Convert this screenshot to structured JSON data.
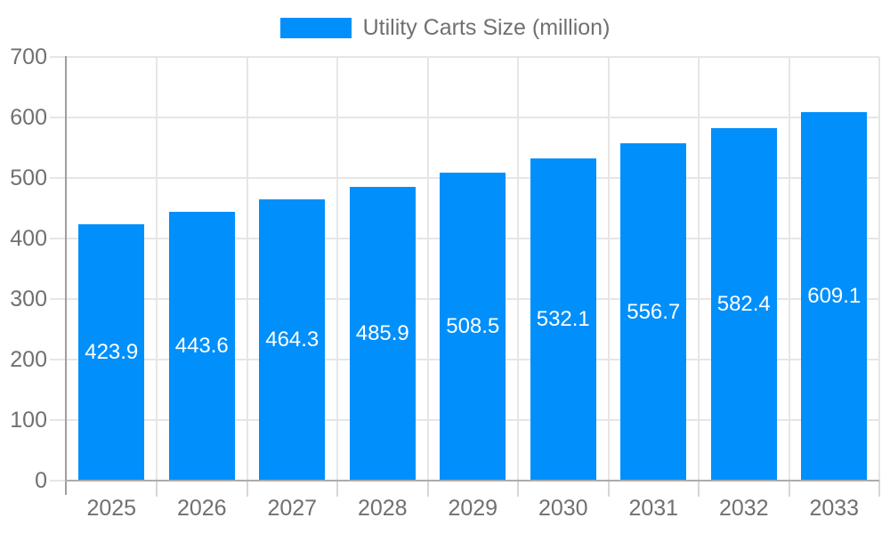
{
  "legend": {
    "label": "Utility Carts Size (million)"
  },
  "chart_data": {
    "type": "bar",
    "title": "Utility Carts Size (million)",
    "categories": [
      "2025",
      "2026",
      "2027",
      "2028",
      "2029",
      "2030",
      "2031",
      "2032",
      "2033"
    ],
    "series": [
      {
        "name": "Utility Carts Size (million)",
        "values": [
          423.9,
          443.6,
          464.3,
          485.9,
          508.5,
          532.1,
          556.7,
          582.4,
          609.1
        ]
      }
    ],
    "value_labels": [
      "423.9",
      "443.6",
      "464.3",
      "485.9",
      "508.5",
      "532.1",
      "556.7",
      "582.4",
      "609.1"
    ],
    "xlabel": "",
    "ylabel": "",
    "ylim": [
      0,
      700
    ],
    "ytick_interval": 100,
    "ytick_labels": [
      "0",
      "100",
      "200",
      "300",
      "400",
      "500",
      "600",
      "700"
    ],
    "grid": "horizontal and vertical gridlines on",
    "legend_position": "top-center",
    "value_label_position": "inside-center",
    "colors": {
      "bar": "#008ffb",
      "grid": "#e6e6e6",
      "left_tick": "#e6e6e6",
      "bottom_tick": "#d6d6d6",
      "axis_line": "#9e9e9e",
      "baseline": "#ababab",
      "axis_text": "#707070",
      "legend_text": "#707070",
      "value_text": "#ffffff",
      "background": "#ffffff"
    }
  }
}
